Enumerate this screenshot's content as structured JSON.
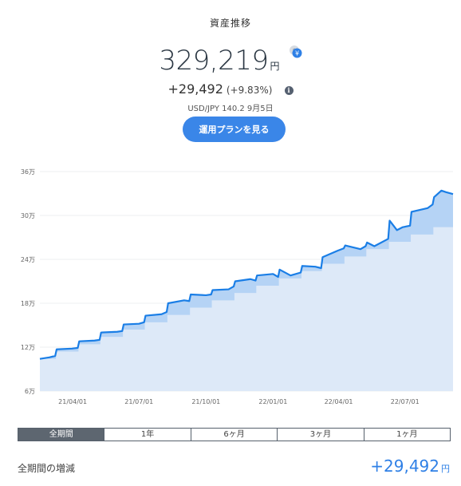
{
  "header": {
    "title": "資産推移",
    "balance": "329,219",
    "balance_unit": "円",
    "change": "+29,492",
    "change_percent": "(+9.83%)",
    "fx_rate": "USD/JPY 140.2 9月5日",
    "plan_button_label": "運用プランを見る",
    "currency_icon": "currency-switch-icon",
    "info_icon": "info-icon"
  },
  "chart_data": {
    "type": "area",
    "y_ticks": [
      "36万",
      "30万",
      "24万",
      "18万",
      "12万",
      "6万"
    ],
    "y_tick_values": [
      360000,
      300000,
      240000,
      180000,
      120000,
      60000
    ],
    "x_ticks": [
      "21/04/01",
      "21/07/01",
      "21/10/01",
      "22/01/01",
      "22/04/01",
      "22/07/01"
    ],
    "ylim": [
      60000,
      360000
    ],
    "grid": true,
    "colors": {
      "valuation_line": "#1a7ee6",
      "valuation_fill": "#b5d3f5",
      "principal_fill": "#dde9f8"
    },
    "series": [
      {
        "key": "valuation",
        "x": [
          "2021-02-15",
          "2021-02-28",
          "2021-03-08",
          "2021-03-10",
          "2021-03-31",
          "2021-04-08",
          "2021-04-10",
          "2021-05-01",
          "2021-05-08",
          "2021-05-10",
          "2021-06-01",
          "2021-06-08",
          "2021-06-10",
          "2021-07-01",
          "2021-07-08",
          "2021-07-10",
          "2021-08-01",
          "2021-08-08",
          "2021-08-10",
          "2021-09-01",
          "2021-09-08",
          "2021-09-10",
          "2021-10-01",
          "2021-10-08",
          "2021-10-10",
          "2021-11-01",
          "2021-11-08",
          "2021-11-10",
          "2021-12-01",
          "2021-12-08",
          "2021-12-10",
          "2022-01-01",
          "2022-01-08",
          "2022-01-10",
          "2022-01-25",
          "2022-02-08",
          "2022-02-10",
          "2022-02-28",
          "2022-03-08",
          "2022-03-10",
          "2022-03-31",
          "2022-04-08",
          "2022-04-10",
          "2022-05-01",
          "2022-05-08",
          "2022-05-10",
          "2022-05-20",
          "2022-06-08",
          "2022-06-10",
          "2022-06-20",
          "2022-06-28",
          "2022-07-08",
          "2022-07-10",
          "2022-08-01",
          "2022-08-08",
          "2022-08-10",
          "2022-08-20",
          "2022-08-26",
          "2022-09-05"
        ],
        "values": [
          104000,
          106000,
          108000,
          117000,
          118000,
          119000,
          128000,
          129000,
          130000,
          140000,
          141000,
          142000,
          151000,
          152000,
          154000,
          163000,
          165000,
          168000,
          180000,
          184000,
          183000,
          192000,
          191000,
          192000,
          198000,
          199000,
          203000,
          210000,
          213000,
          211000,
          218000,
          220000,
          216000,
          226000,
          218000,
          222000,
          231000,
          230000,
          228000,
          243000,
          252000,
          255000,
          259000,
          254000,
          258000,
          263000,
          258000,
          268000,
          293000,
          280000,
          284000,
          286000,
          305000,
          310000,
          315000,
          325000,
          334000,
          332000,
          329219
        ]
      },
      {
        "key": "principal",
        "x": [
          "2021-02-15",
          "2021-03-09",
          "2021-04-09",
          "2021-05-09",
          "2021-06-09",
          "2021-07-09",
          "2021-08-09",
          "2021-09-09",
          "2021-10-09",
          "2021-11-09",
          "2021-12-09",
          "2022-01-09",
          "2022-02-09",
          "2022-03-09",
          "2022-04-09",
          "2022-05-09",
          "2022-06-09",
          "2022-07-09",
          "2022-08-09",
          "2022-09-05"
        ],
        "values": [
          104000,
          114000,
          124000,
          134000,
          144000,
          154000,
          164000,
          174000,
          184000,
          194000,
          204000,
          214000,
          224000,
          234000,
          244000,
          254000,
          264000,
          274000,
          284000,
          299727
        ]
      }
    ]
  },
  "periods": {
    "items": [
      "全期間",
      "1年",
      "6ヶ月",
      "3ヶ月",
      "1ヶ月"
    ],
    "active": "全期間"
  },
  "summary": {
    "label": "全期間の増減",
    "value": "+29,492",
    "unit": "円"
  }
}
